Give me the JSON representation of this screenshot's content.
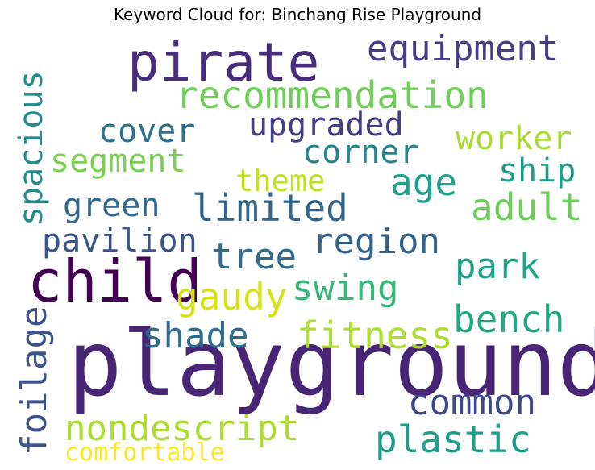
{
  "title": "Keyword Cloud for: Binchang Rise Playground",
  "words": [
    {
      "text": "playground",
      "color": "#482575"
    },
    {
      "text": "pirate",
      "color": "#472d7b"
    },
    {
      "text": "child",
      "color": "#440154"
    },
    {
      "text": "equipment",
      "color": "#433e85"
    },
    {
      "text": "recommendation",
      "color": "#6ece58"
    },
    {
      "text": "upgraded",
      "color": "#423f85"
    },
    {
      "text": "cover",
      "color": "#2c728e"
    },
    {
      "text": "corner",
      "color": "#25848e"
    },
    {
      "text": "worker",
      "color": "#a8db34"
    },
    {
      "text": "segment",
      "color": "#7ad151"
    },
    {
      "text": "spacious",
      "color": "#228c8d"
    },
    {
      "text": "theme",
      "color": "#c2df23"
    },
    {
      "text": "age",
      "color": "#1fa088"
    },
    {
      "text": "ship",
      "color": "#1e9c89"
    },
    {
      "text": "green",
      "color": "#31688e"
    },
    {
      "text": "limited",
      "color": "#32658e"
    },
    {
      "text": "adult",
      "color": "#6ccd5a"
    },
    {
      "text": "pavilion",
      "color": "#3a548c"
    },
    {
      "text": "region",
      "color": "#33638d"
    },
    {
      "text": "tree",
      "color": "#2f6c8e"
    },
    {
      "text": "park",
      "color": "#20a386"
    },
    {
      "text": "gaudy",
      "color": "#d5e21a"
    },
    {
      "text": "swing",
      "color": "#35b779"
    },
    {
      "text": "bench",
      "color": "#22a785"
    },
    {
      "text": "foilage",
      "color": "#3b528b"
    },
    {
      "text": "shade",
      "color": "#2f6b8e"
    },
    {
      "text": "fitness",
      "color": "#b0dd2f"
    },
    {
      "text": "common",
      "color": "#3f4788"
    },
    {
      "text": "nondescript",
      "color": "#addc30"
    },
    {
      "text": "plastic",
      "color": "#1f9e89"
    },
    {
      "text": "comfortable",
      "color": "#fde725"
    }
  ]
}
